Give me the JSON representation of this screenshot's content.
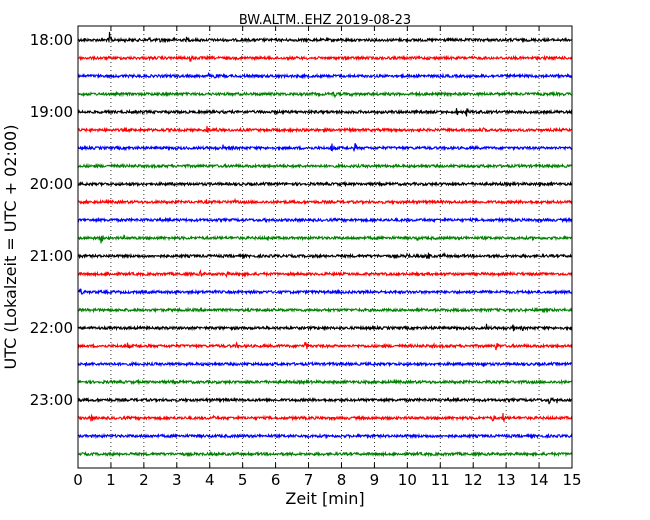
{
  "chart_data": {
    "type": "line",
    "title": "BW.ALTM..EHZ 2019-08-23",
    "xlabel": "Zeit  [min]",
    "ylabel": "UTC (Lokalzeit = UTC + 02:00)",
    "xlim": [
      0,
      15
    ],
    "x_ticks": [
      "0",
      "1",
      "2",
      "3",
      "4",
      "5",
      "6",
      "7",
      "8",
      "9",
      "10",
      "11",
      "12",
      "13",
      "14",
      "15"
    ],
    "y_tick_labels": [
      "18:00",
      "19:00",
      "20:00",
      "21:00",
      "22:00",
      "23:00"
    ],
    "grid": "vertical-dotted",
    "colors": [
      "#000000",
      "#ff0000",
      "#0000ff",
      "#008000"
    ],
    "series": [
      {
        "start": "18:00",
        "events": [
          [
            0.2,
            3
          ],
          [
            0.95,
            9
          ],
          [
            1.4,
            3
          ],
          [
            2.15,
            4
          ],
          [
            2.5,
            5
          ],
          [
            2.9,
            3
          ],
          [
            3.3,
            4
          ],
          [
            4.0,
            2
          ],
          [
            13.3,
            2
          ],
          [
            14.0,
            2
          ]
        ]
      },
      {
        "start": "18:15",
        "events": [
          [
            3.4,
            7
          ],
          [
            5.2,
            2
          ],
          [
            14.2,
            2
          ]
        ]
      },
      {
        "start": "18:30",
        "events": [
          [
            3.95,
            3
          ],
          [
            4.15,
            4
          ],
          [
            5.1,
            4
          ],
          [
            7.9,
            2
          ]
        ]
      },
      {
        "start": "18:45",
        "events": [
          [
            7.75,
            6
          ],
          [
            8.3,
            3
          ]
        ]
      },
      {
        "start": "19:00",
        "events": [
          [
            11.5,
            5
          ],
          [
            11.8,
            5
          ],
          [
            12.1,
            3
          ]
        ]
      },
      {
        "start": "19:15",
        "events": [
          [
            3.9,
            6
          ],
          [
            4.2,
            3
          ],
          [
            12.3,
            3
          ]
        ]
      },
      {
        "start": "19:30",
        "events": [
          [
            1.5,
            3
          ],
          [
            4.4,
            4
          ],
          [
            4.6,
            5
          ],
          [
            7.7,
            7
          ],
          [
            8.4,
            6
          ],
          [
            12.1,
            3
          ]
        ]
      },
      {
        "start": "19:45",
        "events": []
      },
      {
        "start": "20:00",
        "events": []
      },
      {
        "start": "20:15",
        "events": [
          [
            3.9,
            3
          ],
          [
            4.55,
            4
          ],
          [
            4.75,
            3
          ],
          [
            5.0,
            2
          ],
          [
            9.95,
            4
          ]
        ]
      },
      {
        "start": "20:30",
        "events": [
          [
            5.7,
            3
          ]
        ]
      },
      {
        "start": "20:45",
        "events": [
          [
            0.7,
            6
          ],
          [
            1.4,
            3
          ],
          [
            5.75,
            4
          ],
          [
            10.3,
            3
          ]
        ]
      },
      {
        "start": "21:00",
        "events": [
          [
            10.0,
            5
          ],
          [
            10.6,
            7
          ],
          [
            11.1,
            3
          ]
        ]
      },
      {
        "start": "21:15",
        "events": [
          [
            0.9,
            4
          ],
          [
            3.7,
            5
          ],
          [
            4.5,
            4
          ],
          [
            5.0,
            4
          ]
        ]
      },
      {
        "start": "21:30",
        "events": [
          [
            0.05,
            6
          ]
        ]
      },
      {
        "start": "21:45",
        "events": []
      },
      {
        "start": "22:00",
        "events": [
          [
            12.4,
            5
          ],
          [
            13.2,
            5
          ],
          [
            13.5,
            3
          ]
        ]
      },
      {
        "start": "22:15",
        "events": [
          [
            1.5,
            4
          ],
          [
            1.8,
            3
          ],
          [
            4.8,
            4
          ],
          [
            6.9,
            7
          ],
          [
            10.8,
            3
          ],
          [
            12.7,
            6
          ]
        ]
      },
      {
        "start": "22:30",
        "events": [
          [
            2.3,
            2
          ],
          [
            12.3,
            5
          ]
        ]
      },
      {
        "start": "22:45",
        "events": []
      },
      {
        "start": "23:00",
        "events": [
          [
            14.3,
            6
          ],
          [
            14.55,
            4
          ]
        ]
      },
      {
        "start": "23:15",
        "events": [
          [
            0.4,
            5
          ],
          [
            4.1,
            3
          ],
          [
            12.6,
            5
          ],
          [
            12.9,
            6
          ]
        ]
      },
      {
        "start": "23:30",
        "events": []
      },
      {
        "start": "23:45",
        "events": []
      }
    ]
  }
}
